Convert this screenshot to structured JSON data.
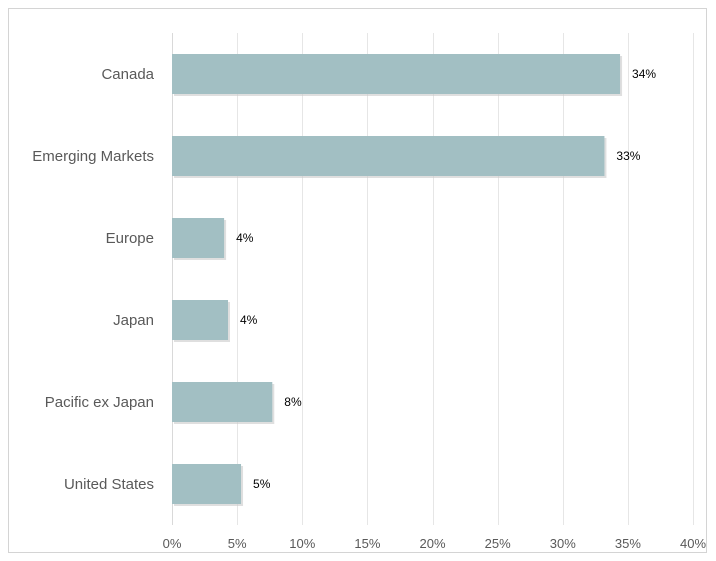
{
  "chart_data": {
    "type": "bar",
    "orientation": "horizontal",
    "categories": [
      "Canada",
      "Emerging Markets",
      "Europe",
      "Japan",
      "Pacific ex Japan",
      "United States"
    ],
    "values": [
      34.4,
      33.2,
      4.0,
      4.3,
      7.7,
      5.3
    ],
    "data_labels": [
      "34%",
      "33%",
      "4%",
      "4%",
      "8%",
      "5%"
    ],
    "x_ticks": [
      "0%",
      "5%",
      "10%",
      "15%",
      "20%",
      "25%",
      "30%",
      "35%",
      "40%"
    ],
    "xlim": [
      0,
      40
    ],
    "grid": true,
    "legend": "none",
    "bar_color": "#a2bfc3",
    "title": "",
    "xlabel": "",
    "ylabel": ""
  }
}
